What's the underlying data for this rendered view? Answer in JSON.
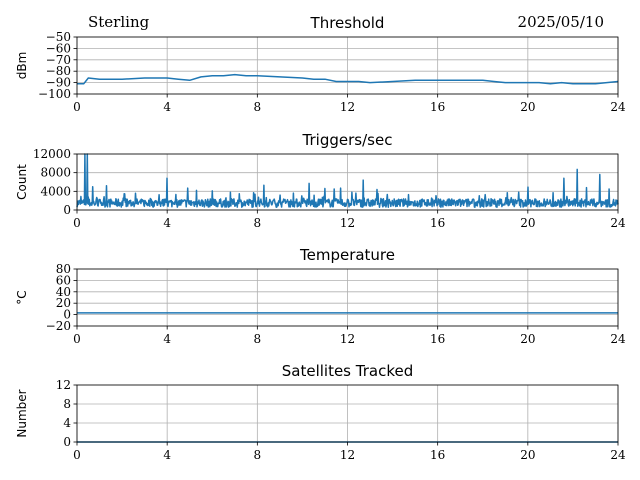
{
  "header": {
    "station": "Sterling",
    "date": "2025/05/10"
  },
  "colors": {
    "line": "#1f77b4",
    "grid": "#b0b0b0",
    "axes": "#000000"
  },
  "chart_data": [
    {
      "type": "line",
      "title": "Threshold",
      "ylabel": "dBm",
      "xlim": [
        0,
        24
      ],
      "ylim": [
        -100,
        -50
      ],
      "xticks": [
        "0",
        "4",
        "8",
        "12",
        "16",
        "20",
        "24"
      ],
      "yticks": [
        "−100",
        "−90",
        "−80",
        "−70",
        "−60",
        "−50"
      ],
      "grid": true,
      "series": [
        {
          "x": [
            0,
            0.3,
            0.5,
            1,
            2,
            3,
            4,
            4.5,
            5,
            5.5,
            6,
            6.5,
            7,
            7.5,
            8,
            9,
            10,
            10.5,
            11,
            11.5,
            12,
            12.5,
            13,
            14,
            15,
            16,
            17,
            18,
            18.5,
            19,
            19.5,
            20,
            20.5,
            21,
            21.5,
            22,
            23,
            23.5,
            24
          ],
          "y": [
            -91,
            -91,
            -86,
            -87,
            -87,
            -86,
            -86,
            -87,
            -88,
            -85,
            -84,
            -84,
            -83,
            -84,
            -84,
            -85,
            -86,
            -87,
            -87,
            -89,
            -89,
            -89,
            -90,
            -89,
            -88,
            -88,
            -88,
            -88,
            -89,
            -90,
            -90,
            -90,
            -90,
            -91,
            -90,
            -91,
            -91,
            -90,
            -89
          ]
        }
      ]
    },
    {
      "type": "line",
      "title": "Triggers/sec",
      "ylabel": "Count",
      "xlim": [
        0,
        24
      ],
      "ylim": [
        0,
        12000
      ],
      "xticks": [
        "0",
        "4",
        "8",
        "12",
        "16",
        "20",
        "24"
      ],
      "yticks": [
        "0",
        "4000",
        "8000",
        "12000"
      ],
      "grid": true,
      "series": [
        {
          "base": 1500,
          "spikes": [
            {
              "x": 0.35,
              "y": 12000
            },
            {
              "x": 0.45,
              "y": 12000
            },
            {
              "x": 0.7,
              "y": 5000
            },
            {
              "x": 1.3,
              "y": 5200
            },
            {
              "x": 2.1,
              "y": 3500
            },
            {
              "x": 2.6,
              "y": 3600
            },
            {
              "x": 4.0,
              "y": 6800
            },
            {
              "x": 4.9,
              "y": 4700
            },
            {
              "x": 5.3,
              "y": 4200
            },
            {
              "x": 6.0,
              "y": 4100
            },
            {
              "x": 6.8,
              "y": 3800
            },
            {
              "x": 8.3,
              "y": 5300
            },
            {
              "x": 9.0,
              "y": 3200
            },
            {
              "x": 10.3,
              "y": 5700
            },
            {
              "x": 11.0,
              "y": 4600
            },
            {
              "x": 11.4,
              "y": 4500
            },
            {
              "x": 11.7,
              "y": 4700
            },
            {
              "x": 12.2,
              "y": 3800
            },
            {
              "x": 12.7,
              "y": 6400
            },
            {
              "x": 13.3,
              "y": 4400
            },
            {
              "x": 14.7,
              "y": 3300
            },
            {
              "x": 18.1,
              "y": 3300
            },
            {
              "x": 19.1,
              "y": 3700
            },
            {
              "x": 19.6,
              "y": 3800
            },
            {
              "x": 20.0,
              "y": 4900
            },
            {
              "x": 21.6,
              "y": 6800
            },
            {
              "x": 22.2,
              "y": 8700
            },
            {
              "x": 22.6,
              "y": 4800
            },
            {
              "x": 23.2,
              "y": 7600
            },
            {
              "x": 23.6,
              "y": 4500
            }
          ]
        }
      ]
    },
    {
      "type": "line",
      "title": "Temperature",
      "ylabel": "°C",
      "xlim": [
        0,
        24
      ],
      "ylim": [
        -20,
        80
      ],
      "xticks": [
        "0",
        "4",
        "8",
        "12",
        "16",
        "20",
        "24"
      ],
      "yticks": [
        "−20",
        "0",
        "20",
        "40",
        "60",
        "80"
      ],
      "grid": true,
      "series": [
        {
          "x": [
            0,
            24
          ],
          "y": [
            3,
            3
          ]
        }
      ]
    },
    {
      "type": "line",
      "title": "Satellites Tracked",
      "ylabel": "Number",
      "xlim": [
        0,
        24
      ],
      "ylim": [
        0,
        12
      ],
      "xticks": [
        "0",
        "4",
        "8",
        "12",
        "16",
        "20",
        "24"
      ],
      "yticks": [
        "0",
        "4",
        "8",
        "12"
      ],
      "grid": true,
      "series": [
        {
          "x": [
            0,
            24
          ],
          "y": [
            0,
            0
          ]
        }
      ]
    }
  ]
}
